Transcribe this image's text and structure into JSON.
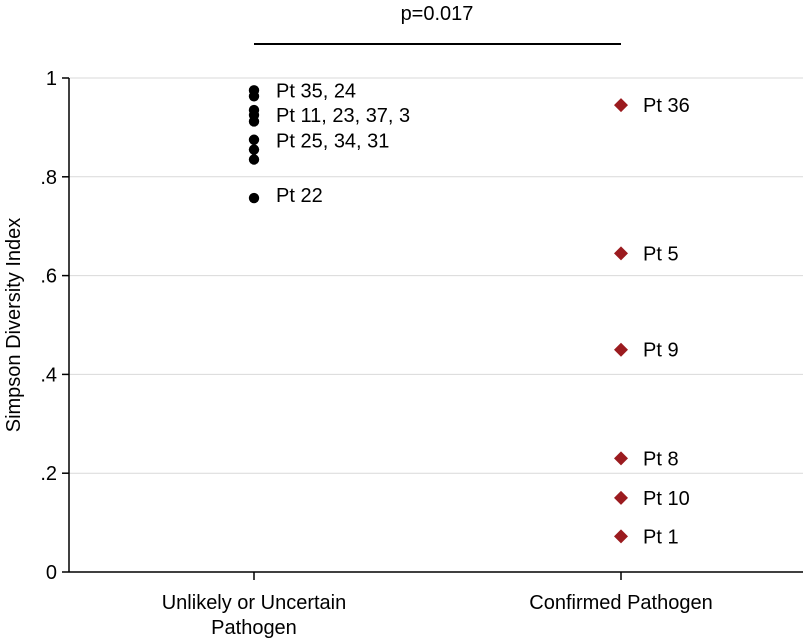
{
  "chart_data": {
    "type": "scatter",
    "title": "",
    "xlabel": "",
    "ylabel": "Simpson Diversity Index",
    "ylim": [
      0,
      1
    ],
    "y_ticks": [
      0,
      0.2,
      0.4,
      0.6,
      0.8,
      1
    ],
    "y_tick_labels": [
      "0",
      ".2",
      ".4",
      ".6",
      ".8",
      "1"
    ],
    "grid": true,
    "categories": [
      {
        "line1": "Unlikely or Uncertain",
        "line2": "Pathogen"
      },
      {
        "line1": "Confirmed Pathogen",
        "line2": ""
      }
    ],
    "annotation": "p=0.017",
    "series": [
      {
        "category_index": 0,
        "color": "#000000",
        "marker": "circle",
        "values": [
          0.975,
          0.963,
          0.935,
          0.925,
          0.912,
          0.875,
          0.855,
          0.835,
          0.757
        ],
        "labels": [
          {
            "text": "Pt 35, 24",
            "y": 0.975
          },
          {
            "text": "Pt 11, 23, 37, 3",
            "y": 0.925
          },
          {
            "text": "Pt 25, 34, 31",
            "y": 0.873
          },
          {
            "text": "Pt 22",
            "y": 0.763
          }
        ]
      },
      {
        "category_index": 1,
        "color": "#9b1b1f",
        "marker": "diamond",
        "values": [
          0.945,
          0.645,
          0.45,
          0.23,
          0.15,
          0.072
        ],
        "labels": [
          {
            "text": "Pt 36",
            "y": 0.945
          },
          {
            "text": "Pt 5",
            "y": 0.645
          },
          {
            "text": "Pt 9",
            "y": 0.45
          },
          {
            "text": "Pt 8",
            "y": 0.23
          },
          {
            "text": "Pt 10",
            "y": 0.15
          },
          {
            "text": "Pt 1",
            "y": 0.072
          }
        ]
      }
    ]
  }
}
